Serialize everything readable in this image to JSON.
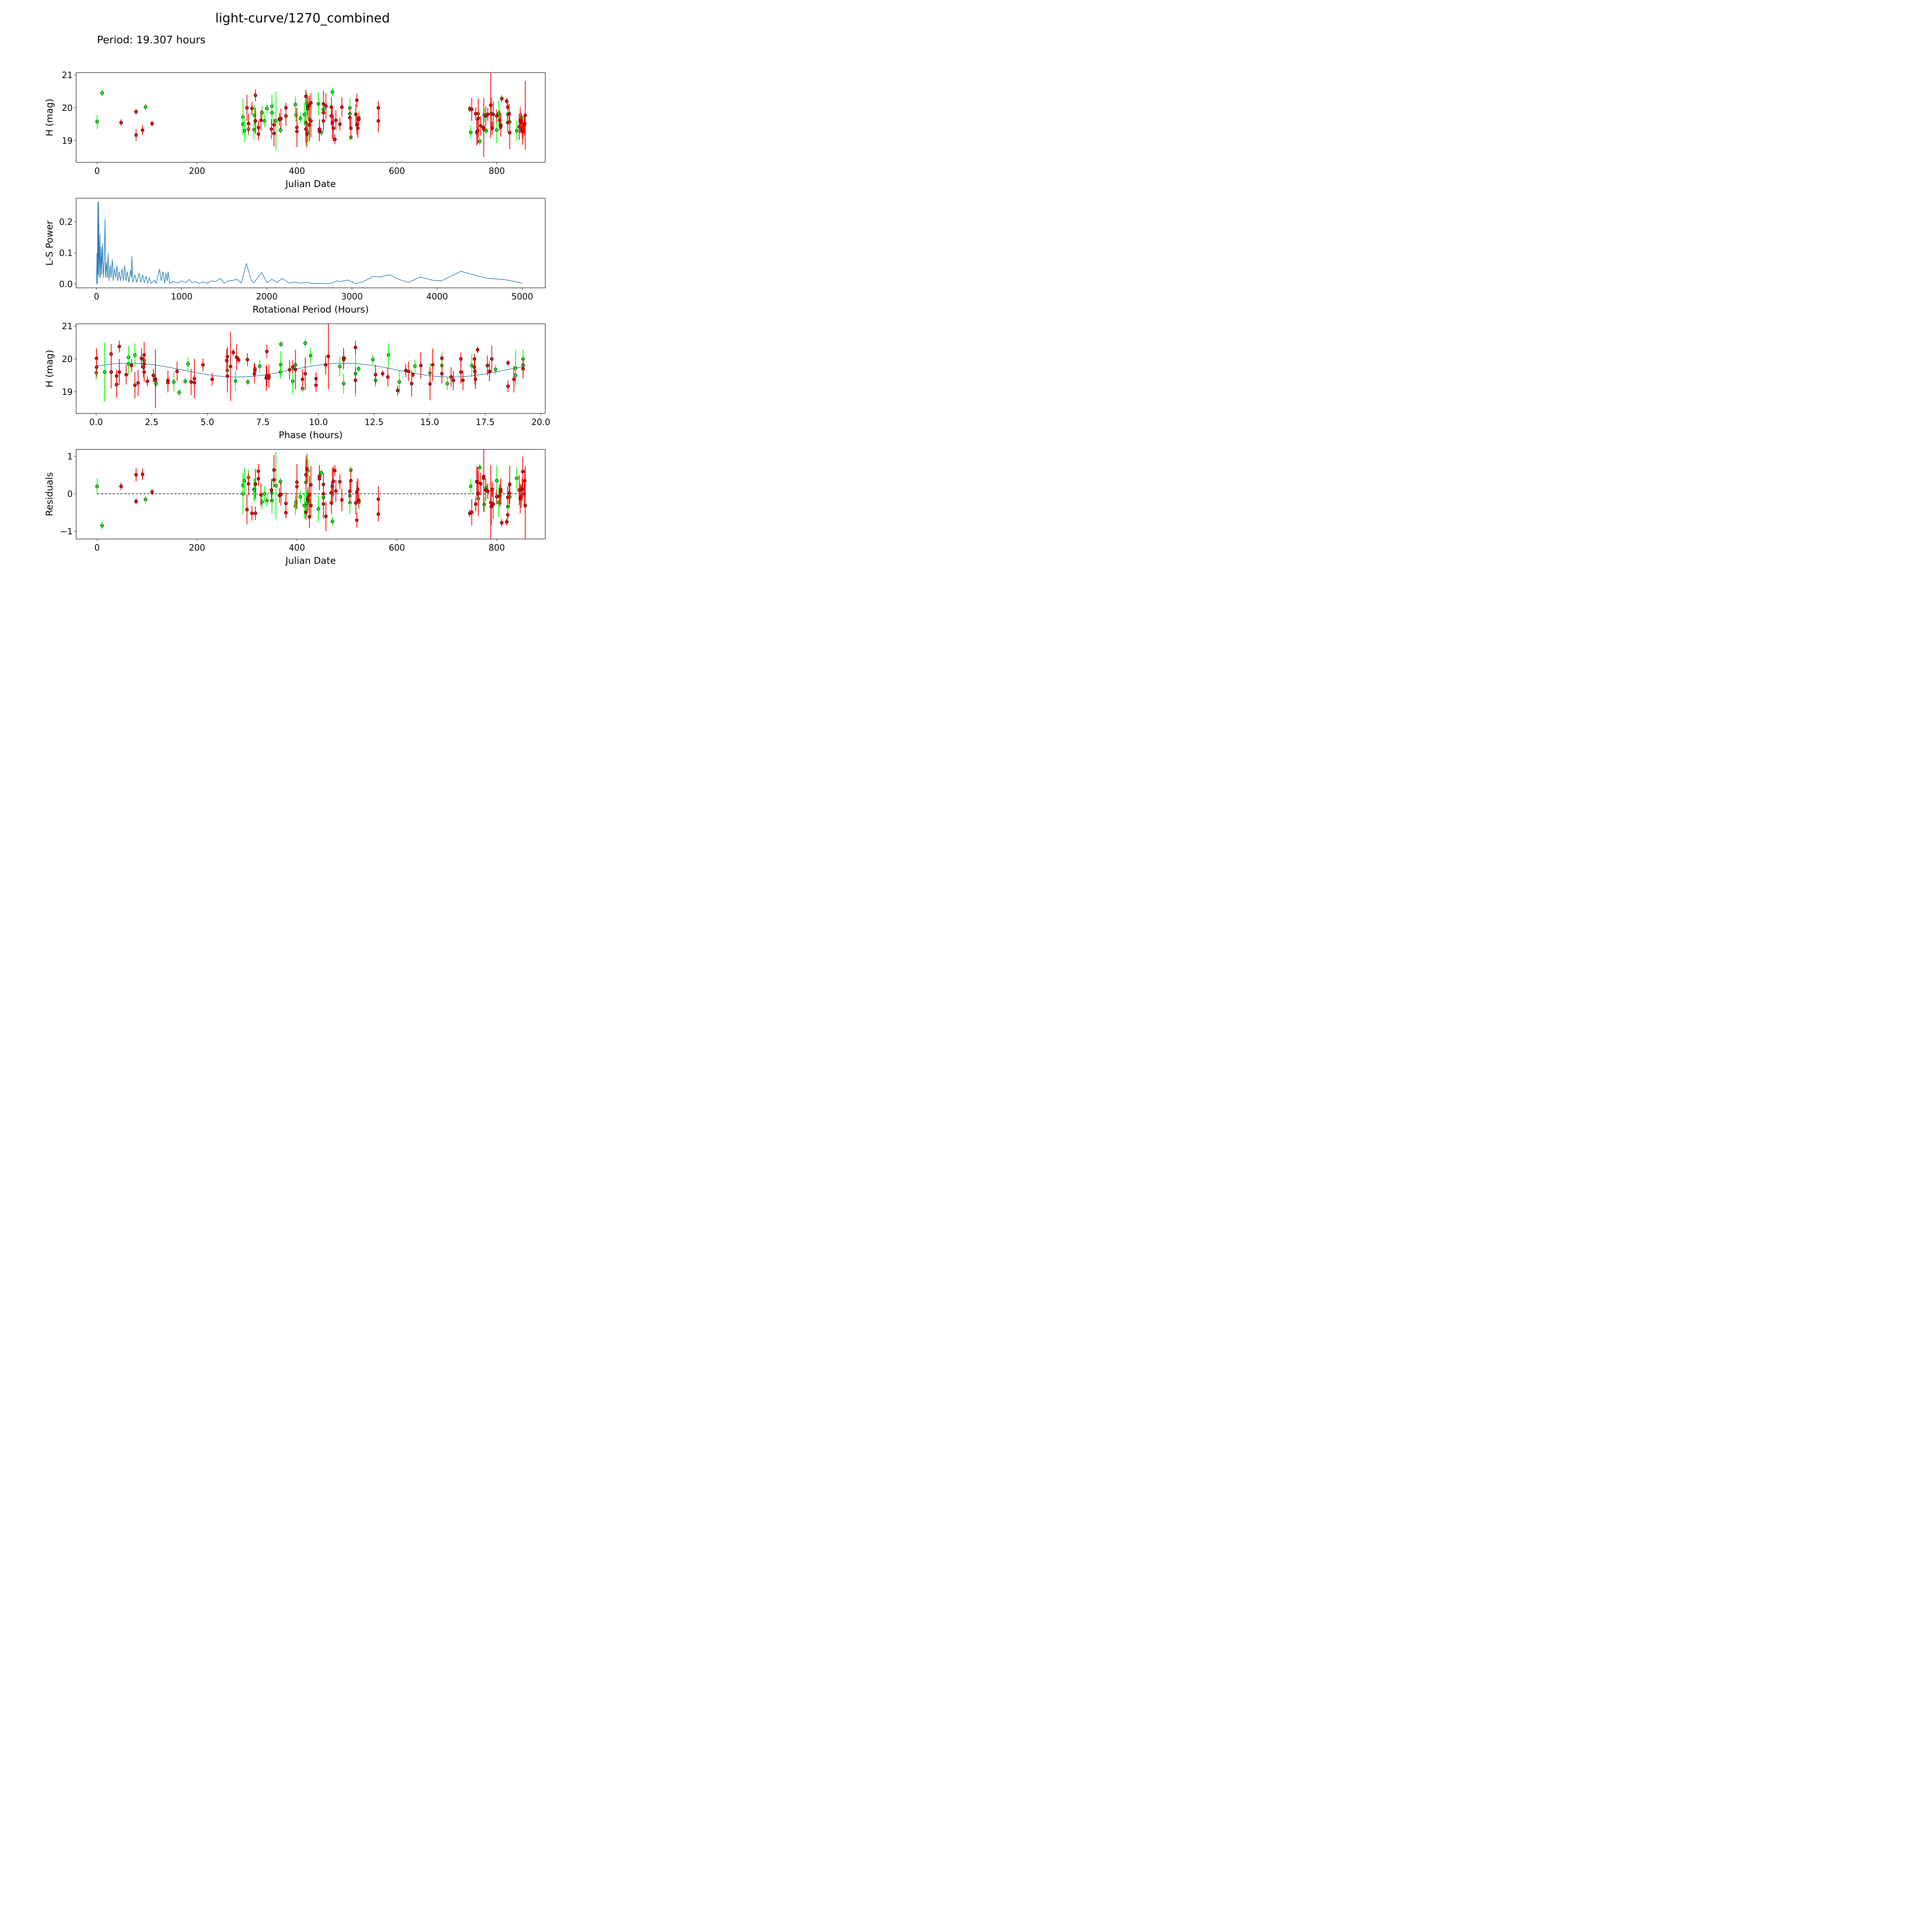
{
  "title": "light-curve/1270_combined",
  "subtitle": "Period: 19.307 hours",
  "colors": {
    "filter_a": "#00ff00",
    "filter_b": "#ff0000",
    "model": "#1f77b4",
    "point_edge": "#000000"
  },
  "chart_data": [
    {
      "type": "scatter",
      "name": "light-curve",
      "xlabel": "Julian Date",
      "ylabel": "H (mag)",
      "xlim": [
        -42,
        897
      ],
      "ylim": [
        18.34,
        21.07
      ],
      "xticks": [
        "0",
        "200",
        "400",
        "600",
        "800"
      ],
      "xtick_values": [
        0,
        200,
        400,
        600,
        800
      ],
      "yticks": [
        "19",
        "20",
        "21"
      ],
      "ytick_values": [
        19,
        20,
        21
      ]
    },
    {
      "type": "line",
      "name": "periodogram",
      "xlabel": "Rotational Period (Hours)",
      "ylabel": "L-S Power",
      "xlim": [
        -240,
        5270
      ],
      "ylim": [
        -0.0124,
        0.276
      ],
      "xticks": [
        "0",
        "1000",
        "2000",
        "3000",
        "4000",
        "5000"
      ],
      "xtick_values": [
        0,
        1000,
        2000,
        3000,
        4000,
        5000
      ],
      "yticks": [
        "0.0",
        "0.1",
        "0.2"
      ],
      "ytick_values": [
        0,
        0.1,
        0.2
      ],
      "points": [
        [
          0,
          0
        ],
        [
          5,
          0.1
        ],
        [
          10,
          0
        ],
        [
          15,
          0.264
        ],
        [
          20,
          0.03
        ],
        [
          25,
          0.264
        ],
        [
          30,
          0.02
        ],
        [
          40,
          0.16
        ],
        [
          45,
          0.02
        ],
        [
          55,
          0.12
        ],
        [
          60,
          0.03
        ],
        [
          70,
          0.13
        ],
        [
          80,
          0.02
        ],
        [
          90,
          0.08
        ],
        [
          100,
          0.21
        ],
        [
          105,
          0.02
        ],
        [
          115,
          0.07
        ],
        [
          125,
          0.02
        ],
        [
          135,
          0.1
        ],
        [
          145,
          0.01
        ],
        [
          160,
          0.06
        ],
        [
          170,
          0.02
        ],
        [
          185,
          0.08
        ],
        [
          195,
          0.01
        ],
        [
          210,
          0.05
        ],
        [
          225,
          0.02
        ],
        [
          240,
          0.06
        ],
        [
          250,
          0.01
        ],
        [
          265,
          0.04
        ],
        [
          280,
          0.01
        ],
        [
          300,
          0.05
        ],
        [
          315,
          0.01
        ],
        [
          330,
          0.06
        ],
        [
          345,
          0.01
        ],
        [
          360,
          0.04
        ],
        [
          380,
          0.005
        ],
        [
          400,
          0.045
        ],
        [
          410,
          0.02
        ],
        [
          415,
          0.09
        ],
        [
          425,
          0.005
        ],
        [
          450,
          0.03
        ],
        [
          470,
          0.005
        ],
        [
          500,
          0.035
        ],
        [
          520,
          0.005
        ],
        [
          540,
          0.03
        ],
        [
          560,
          0.003
        ],
        [
          580,
          0.025
        ],
        [
          600,
          0.003
        ],
        [
          620,
          0.02
        ],
        [
          640,
          0.002
        ],
        [
          680,
          0.012
        ],
        [
          700,
          0.002
        ],
        [
          740,
          0.048
        ],
        [
          760,
          0.01
        ],
        [
          780,
          0.04
        ],
        [
          800,
          0.002
        ],
        [
          815,
          0.035
        ],
        [
          830,
          0.01
        ],
        [
          840,
          0.04
        ],
        [
          860,
          0.002
        ],
        [
          900,
          0.008
        ],
        [
          950,
          0.003
        ],
        [
          1000,
          0.01
        ],
        [
          1050,
          0.005
        ],
        [
          1090,
          0.015
        ],
        [
          1120,
          0.004
        ],
        [
          1150,
          0.008
        ],
        [
          1200,
          0.002
        ],
        [
          1250,
          0.007
        ],
        [
          1300,
          0.002
        ],
        [
          1350,
          0.01
        ],
        [
          1400,
          0.008
        ],
        [
          1450,
          0.018
        ],
        [
          1500,
          0.003
        ],
        [
          1550,
          0.01
        ],
        [
          1600,
          0.012
        ],
        [
          1650,
          0.015
        ],
        [
          1700,
          0.003
        ],
        [
          1760,
          0.066
        ],
        [
          1820,
          0.01
        ],
        [
          1850,
          0.005
        ],
        [
          1940,
          0.037
        ],
        [
          2000,
          0.005
        ],
        [
          2060,
          0.015
        ],
        [
          2120,
          0.005
        ],
        [
          2180,
          0.018
        ],
        [
          2260,
          0.003
        ],
        [
          2330,
          0.006
        ],
        [
          2400,
          0.002
        ],
        [
          2460,
          0.006
        ],
        [
          2540,
          0.001
        ],
        [
          2640,
          0.002
        ],
        [
          2740,
          0.001
        ],
        [
          2820,
          0.01
        ],
        [
          2860,
          0.008
        ],
        [
          2950,
          0.013
        ],
        [
          3050,
          0.001
        ],
        [
          3150,
          0.01
        ],
        [
          3250,
          0.025
        ],
        [
          3320,
          0.022
        ],
        [
          3440,
          0.03
        ],
        [
          3550,
          0.015
        ],
        [
          3660,
          0.005
        ],
        [
          3800,
          0.022
        ],
        [
          3950,
          0.012
        ],
        [
          4050,
          0.01
        ],
        [
          4280,
          0.041
        ],
        [
          4450,
          0.028
        ],
        [
          4600,
          0.018
        ],
        [
          4800,
          0.014
        ],
        [
          5000,
          0.003
        ]
      ]
    },
    {
      "type": "scatter",
      "name": "phase-folded",
      "xlabel": "Phase (hours)",
      "ylabel": "H (mag)",
      "xlim": [
        -0.9,
        20.2
      ],
      "ylim": [
        18.34,
        21.07
      ],
      "xticks": [
        "0.0",
        "2.5",
        "5.0",
        "7.5",
        "10.0",
        "12.5",
        "15.0",
        "17.5",
        "20.0"
      ],
      "xtick_values": [
        0,
        2.5,
        5,
        7.5,
        10,
        12.5,
        15,
        17.5,
        20
      ],
      "yticks": [
        "19",
        "20",
        "21"
      ],
      "ytick_values": [
        19,
        20,
        21
      ],
      "model": {
        "mean": 19.66,
        "amplitude": 0.21,
        "harmonic_period_hours": 9.6535,
        "peak_phase": 1.5
      }
    },
    {
      "type": "scatter",
      "name": "residuals",
      "xlabel": "Julian Date",
      "ylabel": "Residuals",
      "xlim": [
        -42,
        897
      ],
      "ylim": [
        -1.206,
        1.186
      ],
      "xticks": [
        "0",
        "200",
        "400",
        "600",
        "800"
      ],
      "xtick_values": [
        0,
        200,
        400,
        600,
        800
      ],
      "yticks": [
        "−1",
        "0",
        "1"
      ],
      "ytick_values": [
        -1,
        0,
        1
      ]
    }
  ],
  "period_hours": 19.307,
  "observations": {
    "columns": [
      "julian_date",
      "H_mag",
      "error",
      "filter"
    ],
    "rows": [
      [
        0,
        19.58,
        0.22,
        "g"
      ],
      [
        10,
        20.45,
        0.1,
        "g"
      ],
      [
        97,
        20.02,
        0.1,
        "g"
      ],
      [
        292,
        19.72,
        0.55,
        "g"
      ],
      [
        292,
        19.5,
        0.3,
        "g"
      ],
      [
        295,
        19.3,
        0.35,
        "g"
      ],
      [
        303,
        19.35,
        0.2,
        "g"
      ],
      [
        314,
        19.33,
        0.3,
        "g"
      ],
      [
        315,
        19.77,
        0.3,
        "g"
      ],
      [
        330,
        19.85,
        0.2,
        "g"
      ],
      [
        335,
        19.6,
        0.2,
        "g"
      ],
      [
        340,
        19.98,
        0.15,
        "g"
      ],
      [
        350,
        20.05,
        0.35,
        "g"
      ],
      [
        350,
        19.85,
        0.35,
        "g"
      ],
      [
        358,
        19.6,
        0.9,
        "g"
      ],
      [
        367,
        19.32,
        0.1,
        "g"
      ],
      [
        397,
        20.1,
        0.25,
        "g"
      ],
      [
        398,
        19.78,
        0.2,
        "g"
      ],
      [
        407,
        19.68,
        0.15,
        "g"
      ],
      [
        415,
        19.8,
        0.35,
        "g"
      ],
      [
        418,
        19.55,
        0.7,
        "g"
      ],
      [
        420,
        20.12,
        0.35,
        "g"
      ],
      [
        422,
        19.25,
        0.3,
        "g"
      ],
      [
        425,
        19.65,
        0.3,
        "g"
      ],
      [
        443,
        20.12,
        0.35,
        "g"
      ],
      [
        449,
        19.25,
        0.1,
        "g"
      ],
      [
        453,
        19.95,
        0.3,
        "g"
      ],
      [
        471,
        20.48,
        0.12,
        "g"
      ],
      [
        506,
        20.0,
        0.3,
        "g"
      ],
      [
        506,
        19.82,
        0.3,
        "g"
      ],
      [
        508,
        19.1,
        0.1,
        "g"
      ],
      [
        524,
        19.7,
        0.2,
        "g"
      ],
      [
        748,
        19.25,
        0.2,
        "g"
      ],
      [
        763,
        19.82,
        0.35,
        "g"
      ],
      [
        766,
        18.98,
        0.1,
        "g"
      ],
      [
        775,
        19.78,
        0.2,
        "g"
      ],
      [
        779,
        19.3,
        0.1,
        "g"
      ],
      [
        800,
        19.32,
        0.4,
        "g"
      ],
      [
        804,
        19.83,
        0.4,
        "g"
      ],
      [
        822,
        19.8,
        0.4,
        "g"
      ],
      [
        826,
        19.57,
        0.3,
        "g"
      ],
      [
        840,
        19.3,
        0.3,
        "g"
      ],
      [
        850,
        19.7,
        0.1,
        "g"
      ],
      [
        48,
        19.55,
        0.1,
        "r"
      ],
      [
        78,
        19.88,
        0.08,
        "r"
      ],
      [
        78,
        19.17,
        0.18,
        "r"
      ],
      [
        91,
        19.32,
        0.15,
        "r"
      ],
      [
        110,
        19.52,
        0.08,
        "r"
      ],
      [
        300,
        20.0,
        0.4,
        "r"
      ],
      [
        303,
        19.52,
        0.3,
        "r"
      ],
      [
        310,
        19.98,
        0.2,
        "r"
      ],
      [
        317,
        20.38,
        0.18,
        "r"
      ],
      [
        317,
        19.6,
        0.4,
        "r"
      ],
      [
        323,
        19.2,
        0.2,
        "r"
      ],
      [
        323,
        19.4,
        0.2,
        "r"
      ],
      [
        328,
        19.62,
        0.3,
        "r"
      ],
      [
        349,
        19.35,
        0.3,
        "r"
      ],
      [
        354,
        19.22,
        0.4,
        "r"
      ],
      [
        354,
        19.48,
        0.2,
        "r"
      ],
      [
        365,
        19.65,
        0.2,
        "r"
      ],
      [
        368,
        19.67,
        0.3,
        "r"
      ],
      [
        378,
        19.75,
        0.3,
        "r"
      ],
      [
        378,
        20.0,
        0.15,
        "r"
      ],
      [
        400,
        19.4,
        0.6,
        "r"
      ],
      [
        400,
        19.28,
        0.2,
        "r"
      ],
      [
        418,
        20.35,
        0.2,
        "r"
      ],
      [
        418,
        19.35,
        0.4,
        "r"
      ],
      [
        420,
        19.2,
        0.4,
        "r"
      ],
      [
        422,
        20.03,
        0.3,
        "r"
      ],
      [
        422,
        19.98,
        0.3,
        "r"
      ],
      [
        425,
        20.07,
        0.3,
        "r"
      ],
      [
        425,
        19.48,
        0.5,
        "r"
      ],
      [
        428,
        20.15,
        0.3,
        "r"
      ],
      [
        428,
        19.6,
        0.5,
        "r"
      ],
      [
        445,
        19.35,
        0.3,
        "r"
      ],
      [
        445,
        19.28,
        0.3,
        "r"
      ],
      [
        453,
        20.12,
        0.4,
        "r"
      ],
      [
        453,
        19.85,
        0.3,
        "r"
      ],
      [
        453,
        19.6,
        0.3,
        "r"
      ],
      [
        458,
        20.05,
        0.4,
        "r"
      ],
      [
        469,
        20.02,
        0.3,
        "r"
      ],
      [
        469,
        19.75,
        0.3,
        "r"
      ],
      [
        471,
        19.55,
        0.5,
        "r"
      ],
      [
        473,
        19.38,
        0.4,
        "r"
      ],
      [
        476,
        19.04,
        0.15,
        "r"
      ],
      [
        478,
        19.62,
        0.3,
        "r"
      ],
      [
        486,
        19.5,
        0.2,
        "r"
      ],
      [
        490,
        20.02,
        0.3,
        "r"
      ],
      [
        506,
        19.7,
        0.3,
        "r"
      ],
      [
        508,
        19.38,
        0.3,
        "r"
      ],
      [
        518,
        19.8,
        0.3,
        "r"
      ],
      [
        520,
        20.23,
        0.2,
        "r"
      ],
      [
        520,
        19.48,
        0.3,
        "r"
      ],
      [
        522,
        19.38,
        0.3,
        "r"
      ],
      [
        524,
        19.65,
        0.2,
        "r"
      ],
      [
        563,
        20.0,
        0.2,
        "r"
      ],
      [
        563,
        19.6,
        0.35,
        "r"
      ],
      [
        746,
        19.97,
        0.1,
        "r"
      ],
      [
        750,
        19.95,
        0.35,
        "r"
      ],
      [
        758,
        19.82,
        0.2,
        "r"
      ],
      [
        760,
        19.25,
        0.4,
        "r"
      ],
      [
        762,
        19.3,
        0.4,
        "r"
      ],
      [
        763,
        19.68,
        0.6,
        "r"
      ],
      [
        768,
        19.45,
        0.3,
        "r"
      ],
      [
        774,
        19.4,
        0.9,
        "r"
      ],
      [
        774,
        19.35,
        0.3,
        "r"
      ],
      [
        778,
        19.75,
        0.3,
        "r"
      ],
      [
        782,
        19.8,
        0.2,
        "r"
      ],
      [
        788,
        20.08,
        1.0,
        "r"
      ],
      [
        789,
        19.82,
        0.5,
        "r"
      ],
      [
        791,
        19.38,
        0.2,
        "r"
      ],
      [
        793,
        19.8,
        0.4,
        "r"
      ],
      [
        800,
        19.75,
        0.2,
        "r"
      ],
      [
        806,
        19.62,
        0.3,
        "r"
      ],
      [
        808,
        19.48,
        0.35,
        "r"
      ],
      [
        808,
        19.42,
        0.3,
        "r"
      ],
      [
        810,
        20.28,
        0.1,
        "r"
      ],
      [
        820,
        20.2,
        0.1,
        "r"
      ],
      [
        822,
        20.02,
        0.1,
        "r"
      ],
      [
        822,
        19.55,
        0.3,
        "r"
      ],
      [
        825,
        19.82,
        0.3,
        "r"
      ],
      [
        826,
        19.24,
        0.5,
        "r"
      ],
      [
        845,
        19.42,
        0.4,
        "r"
      ],
      [
        847,
        19.62,
        0.4,
        "r"
      ],
      [
        849,
        19.55,
        0.3,
        "r"
      ],
      [
        851,
        19.35,
        0.3,
        "r"
      ],
      [
        852,
        19.27,
        0.4,
        "r"
      ],
      [
        855,
        19.45,
        0.3,
        "r"
      ],
      [
        856,
        19.52,
        0.3,
        "r"
      ],
      [
        857,
        19.77,
        1.05,
        "r"
      ]
    ]
  }
}
